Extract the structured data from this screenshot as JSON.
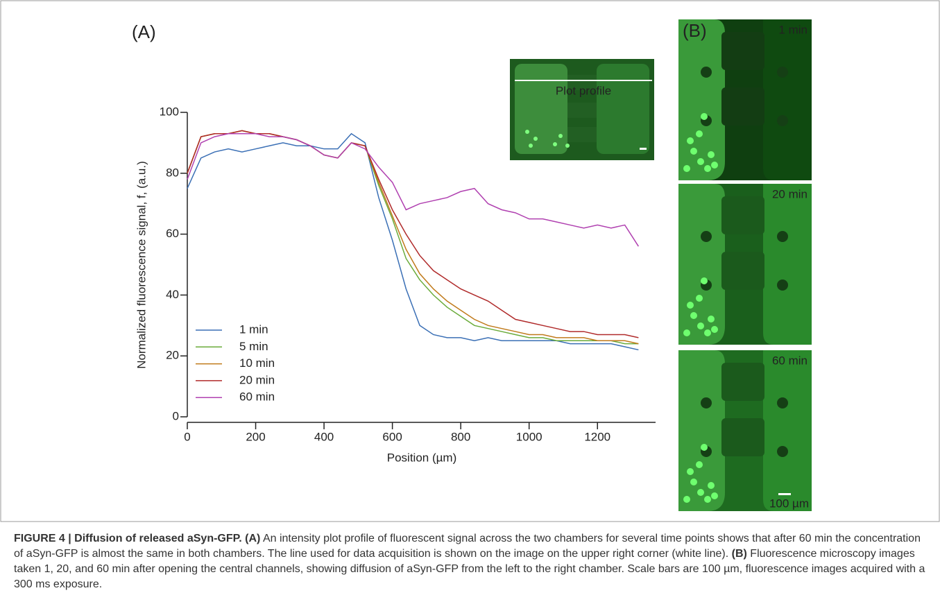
{
  "chart_data": {
    "type": "line",
    "panel_a_label": "(A)",
    "xlabel": "Position (µm)",
    "ylabel": "Normalized fluorescence signal, f, (a.u.)",
    "x": [
      0,
      40,
      80,
      120,
      160,
      200,
      240,
      280,
      320,
      360,
      400,
      440,
      480,
      520,
      560,
      600,
      640,
      680,
      720,
      760,
      800,
      840,
      880,
      920,
      960,
      1000,
      1040,
      1080,
      1120,
      1160,
      1200,
      1240,
      1280,
      1320
    ],
    "series": [
      {
        "name": "1 min",
        "color": "#3a6fb5",
        "values": [
          75,
          85,
          87,
          88,
          87,
          88,
          89,
          90,
          89,
          89,
          88,
          88,
          93,
          90,
          72,
          58,
          42,
          30,
          27,
          26,
          26,
          25,
          26,
          25,
          25,
          25,
          25,
          25,
          24,
          24,
          24,
          24,
          23,
          22
        ]
      },
      {
        "name": "5 min",
        "color": "#6aab3a",
        "values": [
          80,
          92,
          93,
          93,
          94,
          93,
          93,
          92,
          91,
          89,
          86,
          85,
          90,
          89,
          76,
          65,
          52,
          45,
          40,
          36,
          33,
          30,
          29,
          28,
          27,
          26,
          26,
          25,
          25,
          25,
          25,
          25,
          24,
          24
        ]
      },
      {
        "name": "10 min",
        "color": "#c07a1a",
        "values": [
          80,
          92,
          93,
          93,
          94,
          93,
          93,
          92,
          91,
          89,
          86,
          85,
          90,
          89,
          77,
          66,
          55,
          47,
          42,
          38,
          35,
          32,
          30,
          29,
          28,
          27,
          27,
          26,
          26,
          26,
          25,
          25,
          25,
          24
        ]
      },
      {
        "name": "20 min",
        "color": "#b02a2a",
        "values": [
          80,
          92,
          93,
          93,
          94,
          93,
          93,
          92,
          91,
          89,
          86,
          85,
          90,
          89,
          78,
          68,
          60,
          53,
          48,
          45,
          42,
          40,
          38,
          35,
          32,
          31,
          30,
          29,
          28,
          28,
          27,
          27,
          27,
          26
        ]
      },
      {
        "name": "60 min",
        "color": "#b040b0",
        "values": [
          78,
          90,
          92,
          93,
          93,
          93,
          92,
          92,
          91,
          89,
          86,
          85,
          90,
          88,
          82,
          77,
          68,
          70,
          71,
          72,
          74,
          75,
          70,
          68,
          67,
          65,
          65,
          64,
          63,
          62,
          63,
          62,
          63,
          56
        ]
      }
    ],
    "xlim": [
      0,
      1370
    ],
    "xticks": [
      0,
      200,
      400,
      600,
      800,
      1000,
      1200
    ],
    "ylim": [
      0,
      100
    ],
    "yticks": [
      0,
      20,
      40,
      60,
      80,
      100
    ],
    "legend": "lower left",
    "inset_label": "Plot profile",
    "panel_b_label": "(B)",
    "panel_b_times": [
      "1 min",
      "20 min",
      "60 min"
    ],
    "scale_bar_label": "100 µm"
  },
  "caption": {
    "figure": "FIGURE 4 | Diffusion of released aSyn-GFP.",
    "a_label": "(A)",
    "a_text": "An intensity plot profile of fluorescent signal across the two chambers for several time points shows that after 60 min the concentration of aSyn-GFP is almost the same in both chambers. The line used for data acquisition is shown on the image on the upper right corner (white line).",
    "b_label": "(B)",
    "b_text": "Fluorescence microscopy images taken 1, 20, and 60 min after opening the central channels, showing diffusion of aSyn-GFP from the left to the right chamber. Scale bars are 100 µm, fluorescence images acquired with a 300 ms exposure."
  }
}
